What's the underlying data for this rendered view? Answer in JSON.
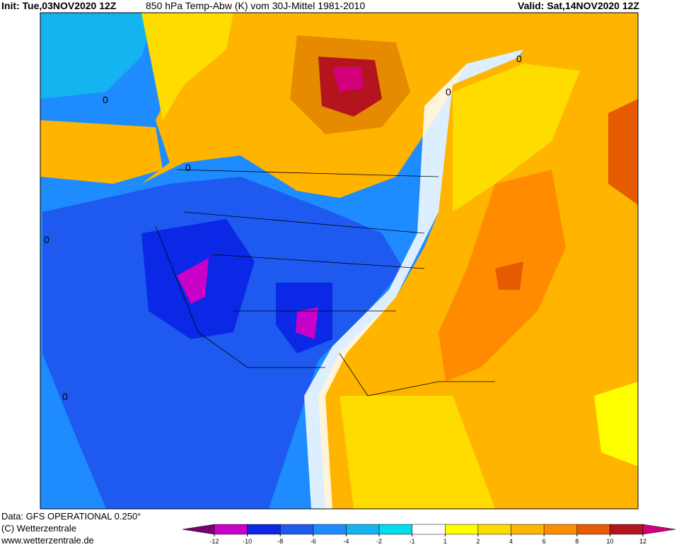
{
  "header": {
    "init": "Init: Tue,03NOV2020 12Z",
    "title": "850 hPa Temp-Abw (K) vom 30J-Mittel 1981-2010",
    "valid": "Valid: Sat,14NOV2020 12Z"
  },
  "footer": {
    "source": "Data: GFS OPERATIONAL 0.250°",
    "copyright": "(C) Wetterzentrale",
    "url": "www.wetterzentrale.de"
  },
  "contour_labels": [
    "0",
    "0",
    "0",
    "0",
    "0",
    "0"
  ],
  "colorbar": {
    "ticks": [
      -12,
      -10,
      -8,
      -6,
      -4,
      -2,
      -1,
      1,
      2,
      4,
      6,
      8,
      10,
      12
    ],
    "colors": [
      "#7a0070",
      "#c800c8",
      "#0a28e6",
      "#1e5af0",
      "#1e8cff",
      "#14b4f0",
      "#00dcf0",
      "#ffffff",
      "#ffff00",
      "#ffdc00",
      "#ffb400",
      "#ff8c00",
      "#e65a00",
      "#b4141e",
      "#d2007a"
    ]
  }
}
